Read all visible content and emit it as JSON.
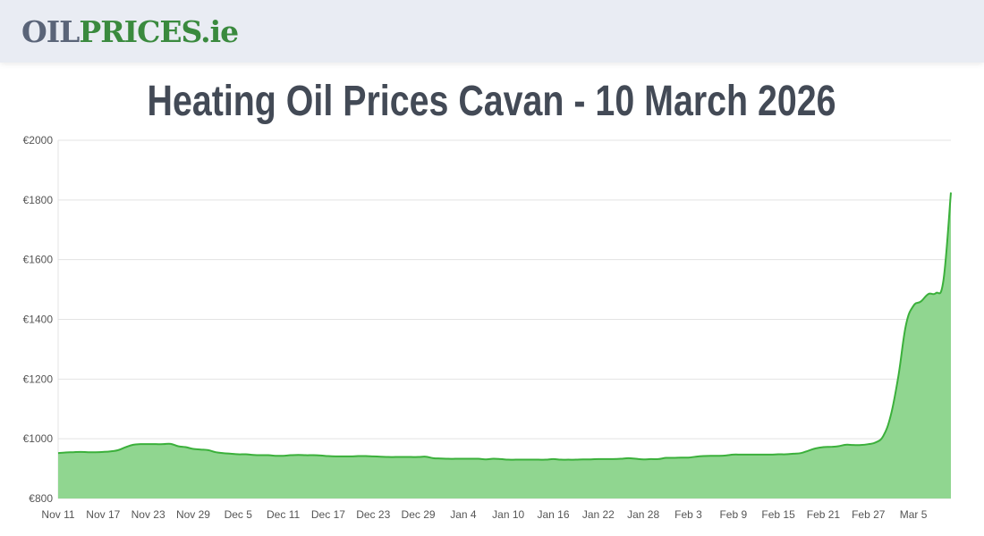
{
  "header": {
    "logo_part1": "OIL",
    "logo_part2": "PRICES.ie"
  },
  "page_title": "Heating Oil Prices Cavan - 10 March 2026",
  "colors": {
    "line": "#3bb03b",
    "fill": "#90d690",
    "header_bg": "#e9ecf3",
    "title": "#434a56"
  },
  "chart_data": {
    "type": "area",
    "title": "",
    "xlabel": "",
    "ylabel": "",
    "ylim": [
      800,
      2000
    ],
    "yticks": [
      "€800",
      "€1000",
      "€1200",
      "€1400",
      "€1600",
      "€1800",
      "€2000"
    ],
    "ytick_values": [
      800,
      1000,
      1200,
      1400,
      1600,
      1800,
      2000
    ],
    "grid": true,
    "x_start": "Nov 11",
    "x_end": "Mar 10",
    "xtick_labels": [
      "Nov 11",
      "Nov 17",
      "Nov 23",
      "Nov 29",
      "Dec 5",
      "Dec 11",
      "Dec 17",
      "Dec 23",
      "Dec 29",
      "Jan 4",
      "Jan 10",
      "Jan 16",
      "Jan 22",
      "Jan 28",
      "Feb 3",
      "Feb 9",
      "Feb 15",
      "Feb 21",
      "Feb 27",
      "Mar 5"
    ],
    "values": [
      952,
      954,
      955,
      956,
      955,
      955,
      956,
      958,
      962,
      972,
      980,
      982,
      982,
      982,
      982,
      983,
      975,
      972,
      966,
      964,
      962,
      955,
      952,
      950,
      948,
      948,
      946,
      945,
      945,
      943,
      943,
      945,
      946,
      945,
      945,
      944,
      942,
      941,
      941,
      941,
      942,
      942,
      941,
      940,
      939,
      939,
      939,
      939,
      939,
      940,
      935,
      934,
      933,
      933,
      933,
      933,
      933,
      931,
      933,
      932,
      930,
      930,
      930,
      930,
      930,
      930,
      932,
      930,
      930,
      930,
      931,
      931,
      932,
      932,
      932,
      933,
      935,
      933,
      931,
      932,
      932,
      936,
      936,
      937,
      937,
      940,
      942,
      943,
      943,
      944,
      947,
      947,
      947,
      947,
      947,
      947,
      948,
      948,
      950,
      952,
      960,
      968,
      972,
      973,
      975,
      980,
      979,
      979,
      982,
      988,
      1010,
      1080,
      1210,
      1380,
      1445,
      1460,
      1485,
      1488,
      1530,
      1825
    ]
  }
}
